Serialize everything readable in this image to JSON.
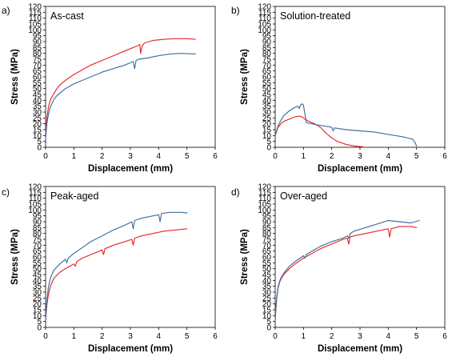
{
  "colors": {
    "red": "#e8262a",
    "blue": "#3d6f9e"
  },
  "chart_data": [
    {
      "type": "line",
      "panel": "a)",
      "annotation": "As-cast",
      "xlabel": "Displacement (mm)",
      "ylabel": "Stress (MPa)",
      "xlim": [
        0,
        6
      ],
      "ylim": [
        0,
        120
      ],
      "xticks": [
        "0",
        "1",
        "2",
        "3",
        "4",
        "5",
        "6"
      ],
      "yticks": [
        "0",
        "5",
        "10",
        "15",
        "20",
        "25",
        "30",
        "35",
        "40",
        "45",
        "50",
        "55",
        "60",
        "65",
        "70",
        "75",
        "80",
        "85",
        "90",
        "95",
        "100",
        "105",
        "110",
        "115",
        "120"
      ],
      "grid": false,
      "series": [
        {
          "color": "red",
          "x": [
            0,
            0.02,
            0.05,
            0.1,
            0.15,
            0.2,
            0.3,
            0.4,
            0.5,
            0.7,
            1.0,
            1.3,
            1.6,
            2.0,
            2.4,
            2.8,
            3.0,
            3.2,
            3.3,
            3.33,
            3.36,
            3.42,
            3.5,
            3.8,
            4.2,
            4.6,
            5.0,
            5.3
          ],
          "y": [
            12,
            18,
            26,
            34,
            39,
            42,
            46,
            50,
            53,
            57,
            62,
            66,
            70,
            74,
            78,
            82,
            84,
            86,
            87,
            87.5,
            80,
            86.5,
            89,
            91,
            92,
            92.5,
            92.5,
            92
          ]
        },
        {
          "color": "blue",
          "x": [
            0,
            0.02,
            0.05,
            0.1,
            0.15,
            0.2,
            0.3,
            0.4,
            0.5,
            0.7,
            1.0,
            1.3,
            1.6,
            2.0,
            2.4,
            2.8,
            3.0,
            3.1,
            3.15,
            3.2,
            3.3,
            3.6,
            4.0,
            4.4,
            4.8,
            5.3
          ],
          "y": [
            7,
            13,
            21,
            28,
            33,
            36,
            41,
            44,
            46,
            50,
            54,
            57,
            60,
            64,
            67,
            70,
            72,
            73,
            67,
            74,
            75,
            76,
            78,
            79.5,
            80,
            79.5
          ]
        }
      ]
    },
    {
      "type": "line",
      "panel": "b)",
      "annotation": "Solution-treated",
      "xlabel": "Displacement (mm)",
      "ylabel": "Stress (MPa)",
      "xlim": [
        0,
        6
      ],
      "ylim": [
        0,
        120
      ],
      "xticks": [
        "0",
        "1",
        "2",
        "3",
        "4",
        "5",
        "6"
      ],
      "yticks": [
        "0",
        "5",
        "10",
        "15",
        "20",
        "25",
        "30",
        "35",
        "40",
        "45",
        "50",
        "55",
        "60",
        "65",
        "70",
        "75",
        "80",
        "85",
        "90",
        "95",
        "100",
        "105",
        "110",
        "115",
        "120"
      ],
      "grid": false,
      "series": [
        {
          "color": "red",
          "x": [
            0,
            0.1,
            0.2,
            0.3,
            0.5,
            0.7,
            0.85,
            0.95,
            1.05,
            1.2,
            1.4,
            1.6,
            1.8,
            2.0,
            2.2,
            2.5,
            2.8,
            3.1
          ],
          "y": [
            10,
            17,
            20,
            22,
            24,
            26,
            26.5,
            26,
            24,
            22,
            20,
            17,
            12,
            8,
            5,
            2.5,
            1,
            0.5
          ]
        },
        {
          "color": "blue",
          "x": [
            0,
            0.1,
            0.2,
            0.3,
            0.5,
            0.7,
            0.8,
            0.85,
            0.9,
            0.95,
            1.0,
            1.1,
            1.3,
            1.5,
            1.9,
            2.0,
            2.05,
            2.1,
            2.5,
            3.0,
            3.5,
            4.0,
            4.5,
            4.85,
            4.95,
            5.0
          ],
          "y": [
            10,
            18,
            23,
            27,
            31,
            34,
            35,
            33,
            36,
            37,
            36,
            21,
            20,
            19,
            17.5,
            17,
            14,
            16.5,
            15,
            14,
            13,
            11,
            9,
            7,
            4,
            1
          ]
        }
      ]
    },
    {
      "type": "line",
      "panel": "c)",
      "annotation": "Peak-aged",
      "xlabel": "Displacement (mm)",
      "ylabel": "Stress (MPa)",
      "xlim": [
        0,
        6
      ],
      "ylim": [
        0,
        120
      ],
      "xticks": [
        "0",
        "1",
        "2",
        "3",
        "4",
        "5",
        "6"
      ],
      "yticks": [
        "0",
        "5",
        "10",
        "15",
        "20",
        "25",
        "30",
        "35",
        "40",
        "45",
        "50",
        "55",
        "60",
        "65",
        "70",
        "75",
        "80",
        "85",
        "90",
        "95",
        "100",
        "105",
        "110",
        "115",
        "120"
      ],
      "grid": false,
      "series": [
        {
          "color": "red",
          "x": [
            0,
            0.02,
            0.05,
            0.1,
            0.15,
            0.2,
            0.3,
            0.5,
            0.7,
            1.0,
            1.05,
            1.1,
            1.3,
            1.6,
            2.0,
            2.05,
            2.1,
            2.4,
            2.8,
            3.05,
            3.1,
            3.15,
            3.4,
            3.8,
            4.2,
            4.6,
            5.0
          ],
          "y": [
            6,
            12,
            20,
            28,
            33,
            37,
            42,
            47,
            50,
            54,
            52,
            56,
            59,
            62,
            66,
            62,
            67,
            70,
            73,
            75,
            70,
            76,
            78,
            80,
            82,
            83,
            84
          ]
        },
        {
          "color": "blue",
          "x": [
            0,
            0.02,
            0.05,
            0.1,
            0.15,
            0.2,
            0.3,
            0.5,
            0.7,
            0.75,
            0.8,
            1.0,
            1.3,
            1.6,
            2.0,
            2.4,
            2.8,
            3.05,
            3.1,
            3.15,
            3.4,
            3.8,
            4.0,
            4.05,
            4.1,
            4.4,
            4.8,
            5.0
          ],
          "y": [
            6,
            14,
            24,
            34,
            40,
            44,
            49,
            54,
            58,
            55,
            59,
            63,
            68,
            73,
            78,
            83,
            87,
            90,
            84,
            91,
            93,
            95,
            96,
            90,
            97,
            98,
            98,
            97.5
          ]
        }
      ]
    },
    {
      "type": "line",
      "panel": "d)",
      "annotation": "Over-aged",
      "xlabel": "Displacement (mm)",
      "ylabel": "Stress (MPa)",
      "xlim": [
        0,
        6
      ],
      "ylim": [
        0,
        120
      ],
      "xticks": [
        "0",
        "1",
        "2",
        "3",
        "4",
        "5",
        "6"
      ],
      "yticks": [
        "0",
        "5",
        "10",
        "15",
        "20",
        "25",
        "30",
        "35",
        "40",
        "45",
        "50",
        "55",
        "60",
        "65",
        "70",
        "75",
        "80",
        "85",
        "90",
        "95",
        "100",
        "105",
        "110",
        "115",
        "120"
      ],
      "grid": false,
      "series": [
        {
          "color": "red",
          "x": [
            0,
            0.02,
            0.05,
            0.1,
            0.15,
            0.2,
            0.3,
            0.5,
            0.7,
            1.0,
            1.3,
            1.6,
            2.0,
            2.4,
            2.55,
            2.6,
            2.65,
            2.8,
            3.2,
            3.6,
            4.0,
            4.05,
            4.1,
            4.4,
            4.8,
            5.0
          ],
          "y": [
            6,
            14,
            24,
            33,
            38,
            41,
            45,
            50,
            54,
            59,
            63,
            67,
            71,
            75,
            76,
            71,
            77,
            78,
            80,
            82,
            84,
            77,
            84,
            86,
            86,
            85
          ]
        },
        {
          "color": "blue",
          "x": [
            0,
            0.02,
            0.05,
            0.1,
            0.15,
            0.2,
            0.3,
            0.5,
            0.7,
            1.0,
            1.05,
            1.1,
            1.3,
            1.6,
            2.0,
            2.4,
            2.55,
            2.6,
            2.65,
            2.8,
            3.2,
            3.6,
            4.0,
            4.4,
            4.8,
            5.1
          ],
          "y": [
            6,
            15,
            25,
            34,
            39,
            42,
            46,
            52,
            56,
            61,
            59,
            62,
            65,
            69,
            73,
            76,
            78,
            76,
            80,
            82,
            85,
            88,
            91,
            90,
            89,
            91
          ]
        }
      ]
    }
  ]
}
